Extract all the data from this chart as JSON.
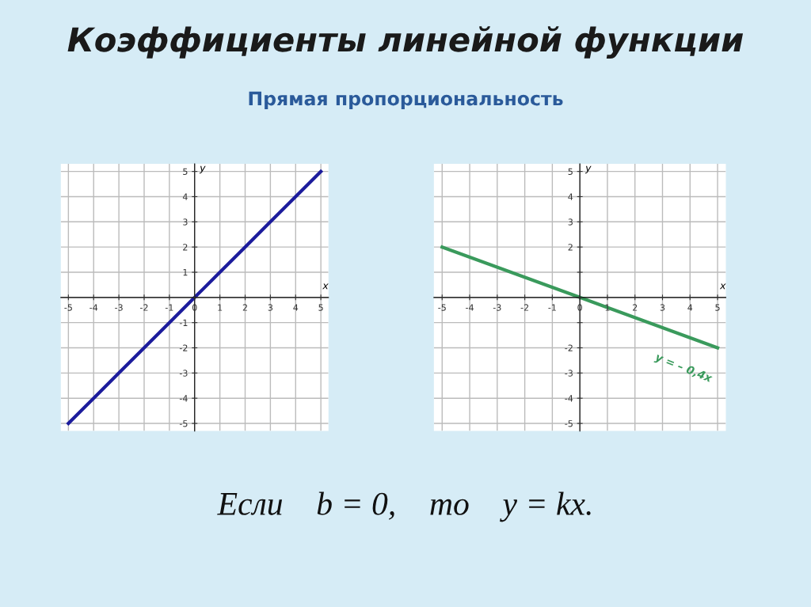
{
  "chart_data": [
    {
      "type": "line",
      "title": "Коэффициенты линейной функции",
      "subtitle": "Прямая пропорциональность",
      "xlabel": "x",
      "ylabel": "y",
      "annotations": [
        "Если    b = 0,    то    y = kx."
      ],
      "x": [
        -5,
        -4,
        -3,
        -2,
        -1,
        0,
        1,
        2,
        3,
        4,
        5
      ],
      "series": [
        {
          "color": "#1c1c9c",
          "values": [
            -5,
            -4,
            -3,
            -2,
            -1,
            0,
            1,
            2,
            3,
            4,
            5
          ]
        }
      ],
      "xlim": [
        -5.3,
        5.3
      ],
      "ylim": [
        -5.3,
        5.3
      ],
      "xticks": [
        -5,
        -4,
        -3,
        -2,
        -1,
        0,
        1,
        2,
        3,
        4,
        5
      ],
      "yticks": [
        -5,
        -4,
        -3,
        -2,
        -1,
        {
          "value": 0,
          "label": null
        },
        1,
        2,
        3,
        4,
        5
      ],
      "grid": true,
      "marker": "none",
      "line_style": "solid"
    },
    {
      "type": "line",
      "xlabel": "x",
      "ylabel": "y",
      "annotations": [
        "y = – 0,4x"
      ],
      "x": [
        -5,
        0,
        5
      ],
      "series": [
        {
          "color": "#3a9a5c",
          "values": [
            2,
            0,
            -2
          ]
        }
      ],
      "xlim": [
        -5.3,
        5.3
      ],
      "ylim": [
        -5.3,
        5.3
      ],
      "xticks": [
        -5,
        -4,
        -3,
        -2,
        -1,
        0,
        1,
        2,
        3,
        4,
        5
      ],
      "yticks": [
        -5,
        -4,
        -3,
        -2,
        {
          "value": -1,
          "label": null
        },
        {
          "value": 0,
          "label": null
        },
        {
          "value": 1,
          "label": null
        },
        2,
        3,
        4,
        5
      ],
      "grid": true,
      "marker": "none",
      "line_style": "solid"
    }
  ]
}
